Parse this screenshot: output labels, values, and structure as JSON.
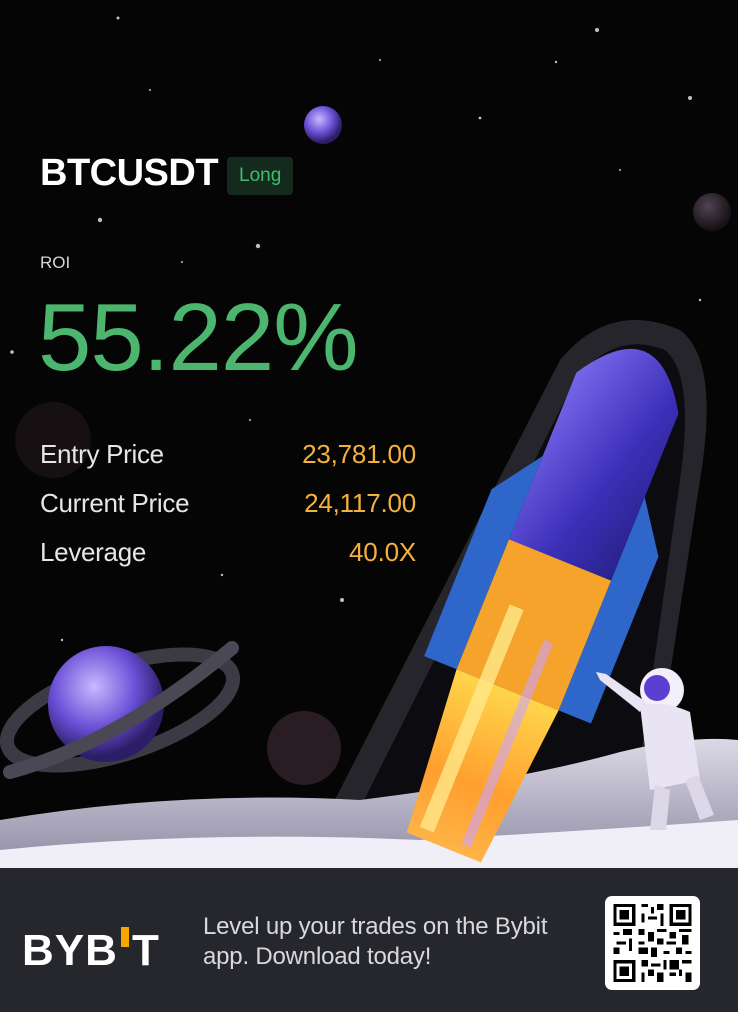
{
  "position": {
    "symbol": "BTCUSDT",
    "side": "Long",
    "roi_label": "ROI",
    "roi_value": "55.22%"
  },
  "metrics": [
    {
      "label": "Entry Price",
      "value": "23,781.00"
    },
    {
      "label": "Current Price",
      "value": "24,117.00"
    },
    {
      "label": "Leverage",
      "value": "40.0X"
    }
  ],
  "footer": {
    "brand": "BYBIT",
    "promo": "Level up your trades on the Bybit app. Download today!"
  },
  "colors": {
    "roi_green": "#4cb56e",
    "value_orange": "#f5b13d",
    "badge_bg": "#132a1c",
    "badge_text": "#3fbf6e",
    "footer_bg": "#25272d",
    "logo_accent": "#f7a600"
  },
  "icons": [
    "rocket-illustration",
    "planet-illustration",
    "astronaut-illustration",
    "bybit-logo",
    "qr-code"
  ]
}
